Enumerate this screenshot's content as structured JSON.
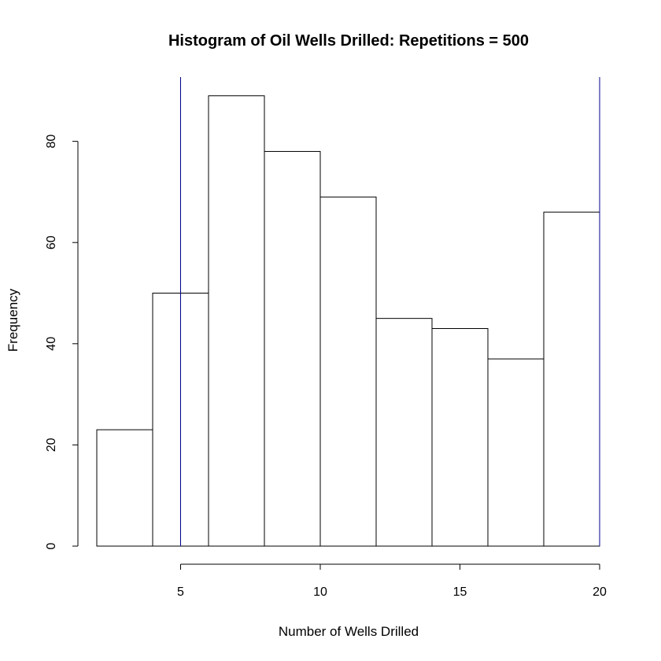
{
  "chart_data": {
    "type": "bar",
    "title": "Histogram of Oil Wells Drilled: Repetitions = 500",
    "xlabel": "Number of Wells Drilled",
    "ylabel": "Frequency",
    "bins": [
      {
        "start": 2,
        "end": 4,
        "value": 23
      },
      {
        "start": 4,
        "end": 6,
        "value": 50
      },
      {
        "start": 6,
        "end": 8,
        "value": 89
      },
      {
        "start": 8,
        "end": 10,
        "value": 78
      },
      {
        "start": 10,
        "end": 12,
        "value": 69
      },
      {
        "start": 12,
        "end": 14,
        "value": 45
      },
      {
        "start": 14,
        "end": 16,
        "value": 43
      },
      {
        "start": 16,
        "end": 18,
        "value": 37
      },
      {
        "start": 18,
        "end": 20,
        "value": 66
      }
    ],
    "xlim": [
      2,
      20
    ],
    "ylim": [
      0,
      89
    ],
    "x_ticks": [
      "5",
      "10",
      "15",
      "20"
    ],
    "y_ticks": [
      "0",
      "20",
      "40",
      "60",
      "80"
    ],
    "reference_lines": [
      {
        "x": 5,
        "color": "#00008b"
      },
      {
        "x": 20,
        "color": "#00008b"
      }
    ],
    "grid": false
  }
}
